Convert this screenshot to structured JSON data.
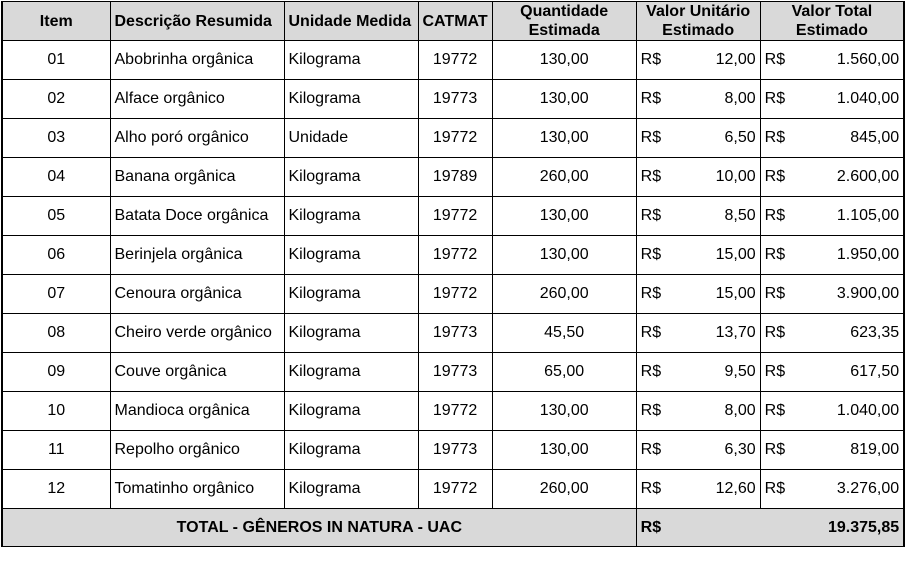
{
  "headers": {
    "item": "Item",
    "descricao": "Descrição Resumida",
    "unidade": "Unidade Medida",
    "catmat": "CATMAT",
    "quantidade": "Quantidade Estimada",
    "unitario": "Valor Unitário Estimado",
    "total": "Valor Total Estimado"
  },
  "currency": "R$",
  "rows": [
    {
      "item": "01",
      "descricao": "Abobrinha orgânica",
      "unidade": "Kilograma",
      "catmat": "19772",
      "quantidade": "130,00",
      "unitario": "12,00",
      "total": "1.560,00"
    },
    {
      "item": "02",
      "descricao": "Alface orgânico",
      "unidade": "Kilograma",
      "catmat": "19773",
      "quantidade": "130,00",
      "unitario": "8,00",
      "total": "1.040,00"
    },
    {
      "item": "03",
      "descricao": "Alho poró orgânico",
      "unidade": "Unidade",
      "catmat": "19772",
      "quantidade": "130,00",
      "unitario": "6,50",
      "total": "845,00"
    },
    {
      "item": "04",
      "descricao": "Banana orgânica",
      "unidade": "Kilograma",
      "catmat": "19789",
      "quantidade": "260,00",
      "unitario": "10,00",
      "total": "2.600,00"
    },
    {
      "item": "05",
      "descricao": "Batata Doce orgânica",
      "unidade": "Kilograma",
      "catmat": "19772",
      "quantidade": "130,00",
      "unitario": "8,50",
      "total": "1.105,00"
    },
    {
      "item": "06",
      "descricao": "Berinjela orgânica",
      "unidade": "Kilograma",
      "catmat": "19772",
      "quantidade": "130,00",
      "unitario": "15,00",
      "total": "1.950,00"
    },
    {
      "item": "07",
      "descricao": "Cenoura orgânica",
      "unidade": "Kilograma",
      "catmat": "19772",
      "quantidade": "260,00",
      "unitario": "15,00",
      "total": "3.900,00"
    },
    {
      "item": "08",
      "descricao": "Cheiro verde orgânico",
      "unidade": "Kilograma",
      "catmat": "19773",
      "quantidade": "45,50",
      "unitario": "13,70",
      "total": "623,35"
    },
    {
      "item": "09",
      "descricao": "Couve orgânica",
      "unidade": "Kilograma",
      "catmat": "19773",
      "quantidade": "65,00",
      "unitario": "9,50",
      "total": "617,50"
    },
    {
      "item": "10",
      "descricao": "Mandioca orgânica",
      "unidade": "Kilograma",
      "catmat": "19772",
      "quantidade": "130,00",
      "unitario": "8,00",
      "total": "1.040,00"
    },
    {
      "item": "11",
      "descricao": "Repolho orgânico",
      "unidade": "Kilograma",
      "catmat": "19773",
      "quantidade": "130,00",
      "unitario": "6,30",
      "total": "819,00"
    },
    {
      "item": "12",
      "descricao": "Tomatinho orgânico",
      "unidade": "Kilograma",
      "catmat": "19772",
      "quantidade": "260,00",
      "unitario": "12,60",
      "total": "3.276,00"
    }
  ],
  "footer": {
    "label": "TOTAL - GÊNEROS IN NATURA - UAC",
    "currency": "R$",
    "value": "19.375,85"
  }
}
